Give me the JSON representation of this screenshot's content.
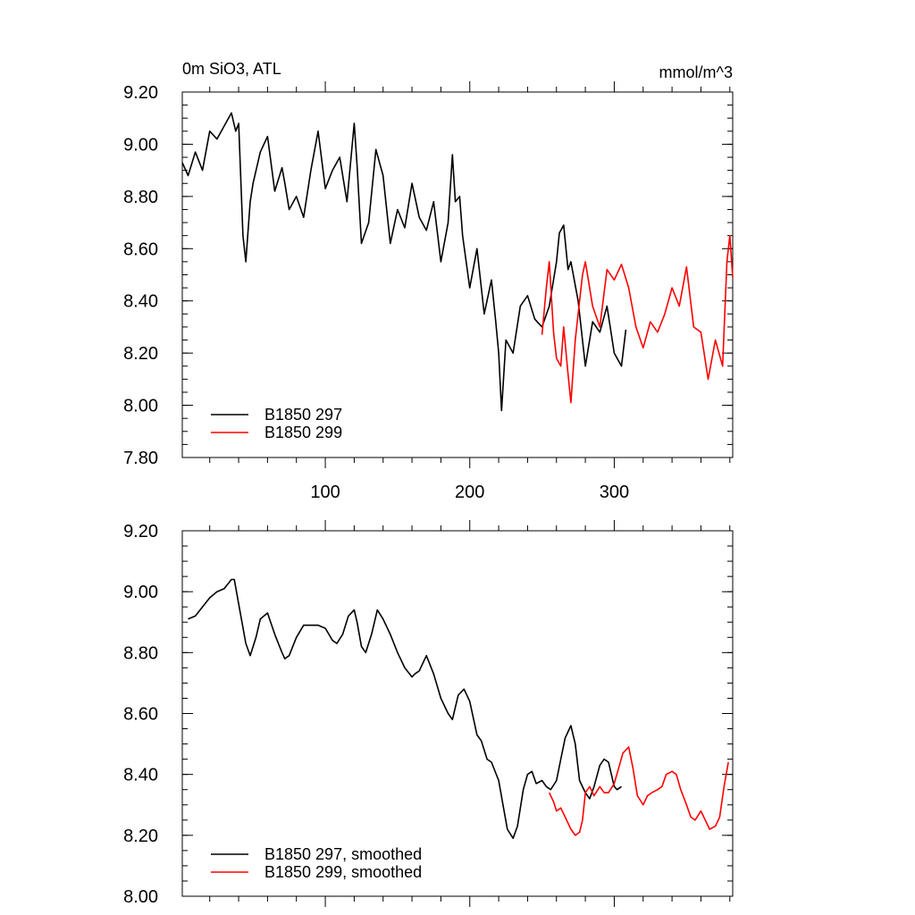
{
  "figure": {
    "title_left": "0m SiO3, ATL",
    "title_right": "mmol/m^3",
    "colors": {
      "series_297": "#000000",
      "series_299": "#ff0000",
      "axis": "#000000",
      "background": "#ffffff"
    }
  },
  "chart_data": [
    {
      "type": "line",
      "title": "0m SiO3, ATL",
      "units": "mmol/m^3",
      "xlim": [
        1,
        382
      ],
      "ylim": [
        7.8,
        9.2
      ],
      "x_ticks": [
        100,
        200,
        300
      ],
      "x_tick_labels": [
        "100",
        "200",
        "300"
      ],
      "y_ticks": [
        7.8,
        8.0,
        8.2,
        8.4,
        8.6,
        8.8,
        9.0,
        9.2
      ],
      "y_tick_labels": [
        "7.80",
        "8.00",
        "8.20",
        "8.40",
        "8.60",
        "8.80",
        "9.00",
        "9.20"
      ],
      "grid": false,
      "legend_position": "bottom-left",
      "series": [
        {
          "name": "B1850 297",
          "color": "#000000",
          "x": [
            1,
            5,
            10,
            15,
            20,
            25,
            30,
            35,
            38,
            40,
            43,
            45,
            48,
            50,
            55,
            60,
            65,
            70,
            72,
            75,
            80,
            85,
            90,
            95,
            100,
            105,
            110,
            115,
            120,
            122,
            125,
            130,
            135,
            140,
            145,
            150,
            155,
            160,
            165,
            170,
            175,
            180,
            185,
            188,
            190,
            193,
            195,
            200,
            205,
            210,
            215,
            218,
            220,
            222,
            225,
            230,
            235,
            240,
            245,
            250,
            255,
            260,
            262,
            265,
            268,
            270,
            275,
            280,
            285,
            290,
            295,
            300,
            305,
            308
          ],
          "y": [
            8.93,
            8.88,
            8.97,
            8.9,
            9.05,
            9.02,
            9.07,
            9.12,
            9.05,
            9.08,
            8.65,
            8.55,
            8.78,
            8.85,
            8.97,
            9.03,
            8.82,
            8.91,
            8.85,
            8.75,
            8.8,
            8.72,
            8.9,
            9.05,
            8.83,
            8.9,
            8.95,
            8.78,
            9.08,
            8.92,
            8.62,
            8.7,
            8.98,
            8.88,
            8.62,
            8.75,
            8.68,
            8.85,
            8.72,
            8.67,
            8.78,
            8.55,
            8.7,
            8.96,
            8.78,
            8.8,
            8.65,
            8.45,
            8.6,
            8.35,
            8.48,
            8.32,
            8.2,
            7.98,
            8.25,
            8.2,
            8.38,
            8.42,
            8.33,
            8.3,
            8.38,
            8.55,
            8.66,
            8.69,
            8.52,
            8.55,
            8.4,
            8.15,
            8.32,
            8.28,
            8.38,
            8.2,
            8.15,
            8.29
          ]
        },
        {
          "name": "B1850 299",
          "color": "#ff0000",
          "x": [
            250,
            253,
            255,
            258,
            260,
            263,
            265,
            268,
            270,
            273,
            275,
            278,
            280,
            285,
            290,
            295,
            300,
            305,
            310,
            315,
            320,
            325,
            330,
            335,
            340,
            345,
            350,
            355,
            360,
            365,
            370,
            375,
            378,
            380,
            382
          ],
          "y": [
            8.27,
            8.45,
            8.55,
            8.28,
            8.18,
            8.15,
            8.3,
            8.12,
            8.01,
            8.25,
            8.35,
            8.5,
            8.55,
            8.38,
            8.3,
            8.52,
            8.48,
            8.54,
            8.45,
            8.3,
            8.22,
            8.32,
            8.28,
            8.35,
            8.45,
            8.38,
            8.53,
            8.3,
            8.28,
            8.1,
            8.25,
            8.15,
            8.55,
            8.65,
            8.49
          ]
        }
      ]
    },
    {
      "type": "line",
      "xlim": [
        1,
        382
      ],
      "ylim": [
        8.0,
        9.2
      ],
      "x_ticks": [
        100,
        200,
        300
      ],
      "y_ticks": [
        8.0,
        8.2,
        8.4,
        8.6,
        8.8,
        9.0,
        9.2
      ],
      "y_tick_labels": [
        "8.00",
        "8.20",
        "8.40",
        "8.60",
        "8.80",
        "9.00",
        "9.20"
      ],
      "grid": false,
      "legend_position": "bottom-left",
      "series": [
        {
          "name": "B1850 297, smoothed",
          "color": "#000000",
          "x": [
            5,
            10,
            15,
            20,
            25,
            30,
            35,
            37,
            40,
            45,
            48,
            52,
            55,
            60,
            65,
            70,
            72,
            75,
            80,
            85,
            90,
            95,
            100,
            105,
            108,
            112,
            116,
            120,
            122,
            125,
            128,
            132,
            136,
            140,
            145,
            150,
            155,
            160,
            162,
            165,
            170,
            175,
            180,
            185,
            188,
            192,
            196,
            200,
            205,
            208,
            212,
            215,
            220,
            223,
            226,
            230,
            233,
            237,
            240,
            243,
            246,
            250,
            253,
            256,
            260,
            263,
            266,
            270,
            273,
            276,
            280,
            283,
            286,
            290,
            293,
            296,
            300,
            302,
            305
          ],
          "y": [
            8.91,
            8.92,
            8.95,
            8.98,
            9.0,
            9.01,
            9.04,
            9.04,
            8.96,
            8.83,
            8.79,
            8.85,
            8.91,
            8.93,
            8.86,
            8.8,
            8.78,
            8.79,
            8.85,
            8.89,
            8.89,
            8.89,
            8.88,
            8.84,
            8.83,
            8.86,
            8.92,
            8.94,
            8.9,
            8.82,
            8.8,
            8.86,
            8.94,
            8.91,
            8.86,
            8.8,
            8.75,
            8.72,
            8.73,
            8.74,
            8.79,
            8.73,
            8.65,
            8.6,
            8.58,
            8.66,
            8.68,
            8.64,
            8.53,
            8.51,
            8.45,
            8.44,
            8.38,
            8.3,
            8.22,
            8.19,
            8.23,
            8.35,
            8.4,
            8.41,
            8.37,
            8.38,
            8.36,
            8.35,
            8.38,
            8.45,
            8.52,
            8.56,
            8.5,
            8.38,
            8.34,
            8.32,
            8.36,
            8.43,
            8.45,
            8.44,
            8.36,
            8.35,
            8.36
          ]
        },
        {
          "name": "B1850 299, smoothed",
          "color": "#ff0000",
          "x": [
            255,
            258,
            260,
            263,
            266,
            270,
            273,
            276,
            278,
            280,
            283,
            286,
            290,
            293,
            296,
            300,
            303,
            306,
            310,
            313,
            316,
            320,
            323,
            326,
            330,
            333,
            336,
            340,
            343,
            346,
            350,
            353,
            356,
            360,
            363,
            366,
            370,
            373,
            376,
            379
          ],
          "y": [
            8.34,
            8.31,
            8.28,
            8.29,
            8.26,
            8.22,
            8.2,
            8.21,
            8.25,
            8.34,
            8.36,
            8.33,
            8.36,
            8.34,
            8.34,
            8.37,
            8.42,
            8.47,
            8.49,
            8.42,
            8.33,
            8.3,
            8.33,
            8.34,
            8.35,
            8.36,
            8.4,
            8.41,
            8.4,
            8.35,
            8.3,
            8.26,
            8.25,
            8.28,
            8.25,
            8.22,
            8.23,
            8.26,
            8.36,
            8.44
          ]
        }
      ]
    }
  ]
}
